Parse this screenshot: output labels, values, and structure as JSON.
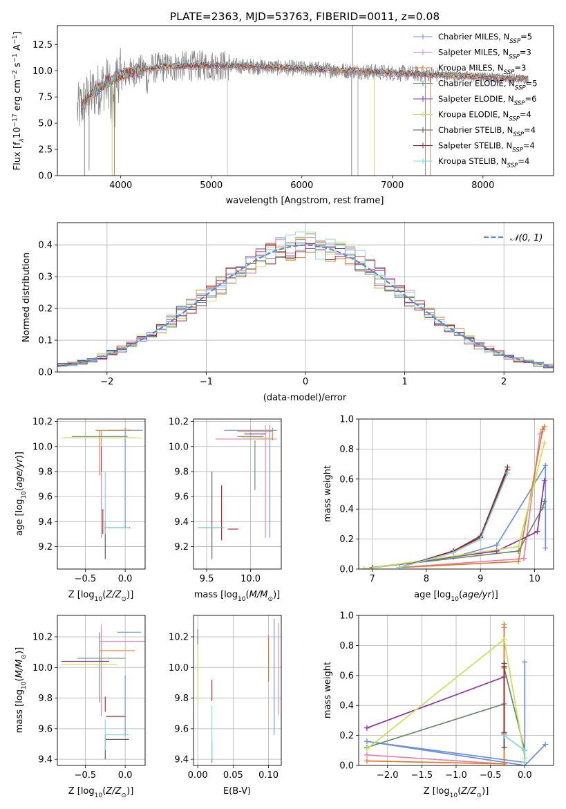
{
  "figure": {
    "title": "PLATE=2363, MJD=53763, FIBERID=0011, z=0.08"
  },
  "colors": {
    "Chabrier MILES": "#6a8fdc",
    "Salpeter MILES": "#e87fae",
    "Kroupa MILES": "#e07b22",
    "Chabrier ELODIE": "#5f8a63",
    "Salpeter ELODIE": "#8e2ea8",
    "Kroupa ELODIE": "#c9e050",
    "Chabrier STELIB": "#505050",
    "Salpeter STELIB": "#b01a1a",
    "Kroupa STELIB": "#7fd6e0",
    "data": "#808080",
    "gaussian": "#5b87d6"
  },
  "chart_data": [
    {
      "id": "spectrum",
      "type": "line",
      "title": "PLATE=2363, MJD=53763, FIBERID=0011, z=0.08",
      "xlabel": "wavelength [Angstrom, rest frame]",
      "ylabel": "Flux [f",
      "ylabel_sub": "λ",
      "ylabel_rest": "10",
      "ylabel_exp": "−17",
      "ylabel_units": " erg cm",
      "ylabel_exp2": "−2",
      "ylabel_units2": " s",
      "ylabel_exp3": "−1",
      "ylabel_units3": " A",
      "ylabel_exp4": "−1",
      "ylabel_close": "]",
      "xlim": [
        3300,
        8780
      ],
      "ylim": [
        0,
        14.3
      ],
      "xticks": [
        "4000",
        "5000",
        "6000",
        "7000",
        "8000"
      ],
      "xtick_values": [
        4000,
        5000,
        6000,
        7000,
        8000
      ],
      "yticks": [
        "0.0",
        "2.5",
        "5.0",
        "7.5",
        "10.0",
        "12.5"
      ],
      "ytick_values": [
        0,
        2.5,
        5.0,
        7.5,
        10.0,
        12.5
      ],
      "data_range": [
        3520,
        8500
      ],
      "continuum": [
        [
          3520,
          6.2
        ],
        [
          3650,
          7.5
        ],
        [
          3800,
          8.6
        ],
        [
          4000,
          9.6
        ],
        [
          4300,
          10.2
        ],
        [
          4600,
          10.4
        ],
        [
          5000,
          10.5
        ],
        [
          5500,
          10.4
        ],
        [
          6000,
          10.2
        ],
        [
          6500,
          10.0
        ],
        [
          7000,
          9.8
        ],
        [
          7500,
          9.6
        ],
        [
          8000,
          9.4
        ],
        [
          8500,
          9.2
        ]
      ],
      "legend": [
        {
          "name": "Chabrier MILES",
          "nssp": "5"
        },
        {
          "name": "Salpeter MILES",
          "nssp": "3"
        },
        {
          "name": "Kroupa MILES",
          "nssp": "3"
        },
        {
          "name": "Chabrier ELODIE",
          "nssp": "5"
        },
        {
          "name": "Salpeter ELODIE",
          "nssp": "6"
        },
        {
          "name": "Kroupa ELODIE",
          "nssp": "4"
        },
        {
          "name": "Chabrier STELIB",
          "nssp": "4"
        },
        {
          "name": "Salpeter STELIB",
          "nssp": "4"
        },
        {
          "name": "Kroupa STELIB",
          "nssp": "4"
        }
      ],
      "legend_prefix": "N",
      "legend_sub": "SSP",
      "legend_placement": "upper-right"
    },
    {
      "id": "residuals",
      "type": "line",
      "xlabel": "(data-model)/error",
      "ylabel": "Normed distribution",
      "xlim": [
        -2.5,
        2.5
      ],
      "ylim": [
        0,
        0.47
      ],
      "xticks": [
        "−2",
        "−1",
        "0",
        "1",
        "2"
      ],
      "xtick_values": [
        -2,
        -1,
        0,
        1,
        2
      ],
      "yticks": [
        "0.0",
        "0.1",
        "0.2",
        "0.3",
        "0.4"
      ],
      "ytick_values": [
        0,
        0.1,
        0.2,
        0.3,
        0.4
      ],
      "grid": true,
      "bin_width": 0.1,
      "legend": "𝒩(0, 1)",
      "legend_placement": "upper-right"
    },
    {
      "id": "age-vs-z",
      "type": "scatter",
      "xlabel": "Z [log",
      "ylabel": "age  [log",
      "xlim": [
        -0.85,
        0.25
      ],
      "ylim": [
        9.02,
        10.22
      ],
      "xticks": [
        "−0.5",
        "0.0"
      ],
      "xtick_values": [
        -0.5,
        0.0
      ],
      "yticks": [
        "9.2",
        "9.4",
        "9.6",
        "9.8",
        "10.0",
        "10.2"
      ],
      "ytick_values": [
        9.2,
        9.4,
        9.6,
        9.8,
        10.0,
        10.2
      ],
      "grid": true,
      "points": [
        {
          "series": "Chabrier MILES",
          "x": 0.0,
          "xerr": 0.22,
          "y": 10.13,
          "yerr": 0.0
        },
        {
          "series": "Chabrier MILES",
          "x": 0.0,
          "xerr": 0.0,
          "y": 9.75,
          "yerr": 0.4
        },
        {
          "series": "Salpeter MILES",
          "x": -0.3,
          "xerr": 0.0,
          "y": 9.7,
          "yerr": 0.43
        },
        {
          "series": "Salpeter MILES",
          "x": -0.32,
          "xerr": 0.45,
          "y": 10.07,
          "yerr": 0.0
        },
        {
          "series": "Kroupa MILES",
          "x": -0.15,
          "xerr": 0.22,
          "y": 10.13,
          "yerr": 0.0
        },
        {
          "series": "Kroupa MILES",
          "x": -0.32,
          "xerr": 0.0,
          "y": 9.95,
          "yerr": 0.18
        },
        {
          "series": "Chabrier ELODIE",
          "x": -0.32,
          "xerr": 0.35,
          "y": 10.08,
          "yerr": 0.0
        },
        {
          "series": "Salpeter ELODIE",
          "x": -0.3,
          "xerr": 0.0,
          "y": 9.9,
          "yerr": 0.1
        },
        {
          "series": "Kroupa ELODIE",
          "x": -0.3,
          "xerr": 0.5,
          "y": 10.07,
          "yerr": 0.0
        },
        {
          "series": "Chabrier STELIB",
          "x": -0.25,
          "xerr": 0.0,
          "y": 9.25,
          "yerr": 0.15
        },
        {
          "series": "Chabrier STELIB",
          "x": -0.1,
          "xerr": 0.16,
          "y": 9.35,
          "yerr": 0.0
        },
        {
          "series": "Salpeter STELIB",
          "x": -0.28,
          "xerr": 0.0,
          "y": 9.4,
          "yerr": 0.1
        },
        {
          "series": "Kroupa STELIB",
          "x": -0.25,
          "xerr": 0.0,
          "y": 9.55,
          "yerr": 0.25
        },
        {
          "series": "Kroupa STELIB",
          "x": -0.1,
          "xerr": 0.15,
          "y": 9.35,
          "yerr": 0.0
        }
      ]
    },
    {
      "id": "age-vs-mass",
      "type": "scatter",
      "xlabel": "mass [log",
      "xlim": [
        9.35,
        10.35
      ],
      "ylim": [
        9.02,
        10.22
      ],
      "xticks": [
        "9.5",
        "10.0"
      ],
      "xtick_values": [
        9.5,
        10.0
      ],
      "yticks": [
        "9.2",
        "9.4",
        "9.6",
        "9.8",
        "10.0",
        "10.2"
      ],
      "ytick_values": [
        9.2,
        9.4,
        9.6,
        9.8,
        10.0,
        10.2
      ],
      "grid": true,
      "points": [
        {
          "series": "Chabrier MILES",
          "x": 10.0,
          "xerr": 0.3,
          "y": 10.13,
          "yerr": 0.0
        },
        {
          "series": "Chabrier MILES",
          "x": 10.22,
          "xerr": 0.0,
          "y": 9.72,
          "yerr": 0.45
        },
        {
          "series": "Salpeter MILES",
          "x": 9.95,
          "xerr": 0.35,
          "y": 10.06,
          "yerr": 0.0
        },
        {
          "series": "Salpeter MILES",
          "x": 10.17,
          "xerr": 0.0,
          "y": 9.72,
          "yerr": 0.45
        },
        {
          "series": "Kroupa MILES",
          "x": 10.05,
          "xerr": 0.2,
          "y": 10.12,
          "yerr": 0.0
        },
        {
          "series": "Kroupa MILES",
          "x": 10.25,
          "xerr": 0.0,
          "y": 10.1,
          "yerr": 0.05
        },
        {
          "series": "Chabrier ELODIE",
          "x": 10.0,
          "xerr": 0.15,
          "y": 10.08,
          "yerr": 0.0
        },
        {
          "series": "Chabrier ELODIE",
          "x": 10.05,
          "xerr": 0.0,
          "y": 9.85,
          "yerr": 0.2
        },
        {
          "series": "Salpeter ELODIE",
          "x": 10.05,
          "xerr": 0.12,
          "y": 10.1,
          "yerr": 0.0
        },
        {
          "series": "Kroupa ELODIE",
          "x": 10.07,
          "xerr": 0.17,
          "y": 10.07,
          "yerr": 0.0
        },
        {
          "series": "Chabrier STELIB",
          "x": 9.55,
          "xerr": 0.15,
          "y": 9.35,
          "yerr": 0.0
        },
        {
          "series": "Chabrier STELIB",
          "x": 9.56,
          "xerr": 0.0,
          "y": 9.45,
          "yerr": 0.35
        },
        {
          "series": "Salpeter STELIB",
          "x": 9.67,
          "xerr": 0.0,
          "y": 9.47,
          "yerr": 0.22
        },
        {
          "series": "Salpeter STELIB",
          "x": 9.8,
          "xerr": 0.06,
          "y": 9.34,
          "yerr": 0.0
        },
        {
          "series": "Kroupa STELIB",
          "x": 9.55,
          "xerr": 0.15,
          "y": 9.35,
          "yerr": 0.0
        }
      ]
    },
    {
      "id": "massweight-vs-age",
      "type": "line",
      "xlabel": "age  [log",
      "ylabel": "mass weight",
      "xlim": [
        6.75,
        10.35
      ],
      "ylim": [
        0,
        1.0
      ],
      "xticks": [
        "7",
        "8",
        "9",
        "10"
      ],
      "xtick_values": [
        7,
        8,
        9,
        10
      ],
      "yticks": [
        "0.0",
        "0.2",
        "0.4",
        "0.6",
        "0.8",
        "1.0"
      ],
      "ytick_values": [
        0,
        0.2,
        0.4,
        0.6,
        0.8,
        1.0
      ],
      "grid": true,
      "series": [
        {
          "name": "Chabrier MILES",
          "x": [
            6.85,
            8.5,
            9.3,
            10.2,
            10.2
          ],
          "y": [
            0.0,
            0.08,
            0.16,
            0.69,
            0.14
          ]
        },
        {
          "name": "Salpeter MILES",
          "x": [
            7.5,
            9.8,
            10.1,
            10.15
          ],
          "y": [
            0.01,
            0.07,
            0.9,
            0.92
          ]
        },
        {
          "name": "Kroupa MILES",
          "x": [
            7.5,
            9.7,
            10.15,
            10.18
          ],
          "y": [
            0.01,
            0.05,
            0.93,
            0.95
          ]
        },
        {
          "name": "Chabrier ELODIE",
          "x": [
            7.0,
            9.7,
            10.15,
            10.18
          ],
          "y": [
            0.01,
            0.12,
            0.41,
            0.45
          ]
        },
        {
          "name": "Salpeter ELODIE",
          "x": [
            7.0,
            9.3,
            10.05,
            10.18
          ],
          "y": [
            0.01,
            0.12,
            0.25,
            0.59
          ]
        },
        {
          "name": "Kroupa ELODIE",
          "x": [
            6.85,
            9.7,
            10.18
          ],
          "y": [
            0.0,
            0.15,
            0.84
          ]
        },
        {
          "name": "Chabrier STELIB",
          "x": [
            7.5,
            8.5,
            9.0,
            9.5
          ],
          "y": [
            0.01,
            0.12,
            0.22,
            0.68
          ]
        },
        {
          "name": "Salpeter STELIB",
          "x": [
            7.5,
            8.5,
            9.0,
            9.5
          ],
          "y": [
            0.01,
            0.12,
            0.21,
            0.66
          ]
        },
        {
          "name": "Kroupa STELIB",
          "x": [
            7.5,
            8.5,
            9.0,
            9.5
          ],
          "y": [
            0.01,
            0.11,
            0.2,
            0.64
          ]
        }
      ]
    },
    {
      "id": "mass-vs-z",
      "type": "scatter",
      "xlabel": "Z [log",
      "ylabel": "mass [log",
      "xlim": [
        -0.85,
        0.25
      ],
      "ylim": [
        9.36,
        10.34
      ],
      "xticks": [
        "−0.5",
        "0.0"
      ],
      "xtick_values": [
        -0.5,
        0.0
      ],
      "yticks": [
        "9.4",
        "9.6",
        "9.8",
        "10.0",
        "10.2"
      ],
      "ytick_values": [
        9.4,
        9.6,
        9.8,
        10.0,
        10.2
      ],
      "grid": true,
      "points": [
        {
          "series": "Chabrier MILES",
          "x": 0.05,
          "xerr": 0.15,
          "y": 10.23,
          "yerr": 0.0
        },
        {
          "series": "Chabrier MILES",
          "x": 0.0,
          "xerr": 0.0,
          "y": 9.75,
          "yerr": 0.2
        },
        {
          "series": "Salpeter MILES",
          "x": -0.02,
          "xerr": 0.3,
          "y": 10.17,
          "yerr": 0.0
        },
        {
          "series": "Salpeter MILES",
          "x": -0.3,
          "xerr": 0.0,
          "y": 9.98,
          "yerr": 0.3
        },
        {
          "series": "Kroupa MILES",
          "x": -0.1,
          "xerr": 0.22,
          "y": 10.11,
          "yerr": 0.0
        },
        {
          "series": "Chabrier ELODIE",
          "x": -0.3,
          "xerr": 0.3,
          "y": 10.06,
          "yerr": 0.0
        },
        {
          "series": "Chabrier ELODIE",
          "x": -0.32,
          "xerr": 0.0,
          "y": 10.0,
          "yerr": 0.23
        },
        {
          "series": "Salpeter ELODIE",
          "x": -0.5,
          "xerr": 0.3,
          "y": 10.04,
          "yerr": 0.0
        },
        {
          "series": "Kroupa ELODIE",
          "x": -0.45,
          "xerr": 0.35,
          "y": 10.02,
          "yerr": 0.0
        },
        {
          "series": "Chabrier STELIB",
          "x": -0.1,
          "xerr": 0.15,
          "y": 9.53,
          "yerr": 0.0
        },
        {
          "series": "Chabrier STELIB",
          "x": -0.25,
          "xerr": 0.0,
          "y": 9.48,
          "yerr": 0.08
        },
        {
          "series": "Salpeter STELIB",
          "x": -0.25,
          "xerr": 0.0,
          "y": 9.76,
          "yerr": 0.05
        },
        {
          "series": "Salpeter STELIB",
          "x": -0.12,
          "xerr": 0.12,
          "y": 9.68,
          "yerr": 0.0
        },
        {
          "series": "Kroupa STELIB",
          "x": -0.1,
          "xerr": 0.15,
          "y": 9.56,
          "yerr": 0.0
        },
        {
          "series": "Kroupa STELIB",
          "x": -0.25,
          "xerr": 0.0,
          "y": 9.56,
          "yerr": 0.1
        }
      ]
    },
    {
      "id": "mass-vs-ebv",
      "type": "scatter",
      "xlabel": "E(B-V)",
      "xlim": [
        -0.006,
        0.118
      ],
      "ylim": [
        9.36,
        10.34
      ],
      "xticks": [
        "0.00",
        "0.05",
        "0.10"
      ],
      "xtick_values": [
        0.0,
        0.05,
        0.1
      ],
      "yticks": [
        "9.4",
        "9.6",
        "9.8",
        "10.0",
        "10.2"
      ],
      "ytick_values": [
        9.4,
        9.6,
        9.8,
        10.0,
        10.2
      ],
      "grid": true,
      "points": [
        {
          "series": "Chabrier MILES",
          "x": 0.108,
          "xerr": 0.0,
          "y": 9.94,
          "yerr": 0.38
        },
        {
          "series": "Salpeter MILES",
          "x": 0.114,
          "xerr": 0.0,
          "y": 9.99,
          "yerr": 0.3
        },
        {
          "series": "Kroupa MILES",
          "x": 0.1,
          "xerr": 0.0,
          "y": 10.06,
          "yerr": 0.15
        },
        {
          "series": "Kroupa ELODIE",
          "x": 0.0,
          "xerr": 0.0,
          "y": 9.98,
          "yerr": 0.23
        },
        {
          "series": "Chabrier ELODIE",
          "x": 0.0,
          "xerr": 0.0,
          "y": 10.2,
          "yerr": 0.05
        },
        {
          "series": "Chabrier STELIB",
          "x": 0.02,
          "xerr": 0.0,
          "y": 9.45,
          "yerr": 0.07
        },
        {
          "series": "Salpeter STELIB",
          "x": 0.02,
          "xerr": 0.0,
          "y": 9.85,
          "yerr": 0.07
        },
        {
          "series": "Kroupa STELIB",
          "x": 0.02,
          "xerr": 0.0,
          "y": 9.57,
          "yerr": 0.18
        }
      ]
    },
    {
      "id": "massweight-vs-z",
      "type": "line",
      "xlabel": "Z [log",
      "ylabel": "mass weight",
      "xlim": [
        -2.42,
        0.42
      ],
      "ylim": [
        0,
        1.0
      ],
      "xticks": [
        "−2.0",
        "−1.5",
        "−1.0",
        "−0.5",
        "0.0"
      ],
      "xtick_values": [
        -2.0,
        -1.5,
        -1.0,
        -0.5,
        0.0
      ],
      "yticks": [
        "0.0",
        "0.2",
        "0.4",
        "0.6",
        "0.8",
        "1.0"
      ],
      "ytick_values": [
        0,
        0.2,
        0.4,
        0.6,
        0.8,
        1.0
      ],
      "grid": true,
      "series": [
        {
          "name": "Chabrier MILES",
          "x": [
            0.3,
            0.0,
            -2.3,
            0.0,
            0.0
          ],
          "y": [
            0.14,
            0.0,
            0.16,
            0.02,
            0.69
          ]
        },
        {
          "name": "Salpeter MILES",
          "x": [
            -2.3,
            -0.3,
            -0.3
          ],
          "y": [
            0.07,
            0.01,
            0.92
          ]
        },
        {
          "name": "Kroupa MILES",
          "x": [
            -2.3,
            -0.3,
            -0.3
          ],
          "y": [
            0.03,
            0.01,
            0.94
          ]
        },
        {
          "name": "Chabrier ELODIE",
          "x": [
            -2.3,
            -0.3,
            -0.3,
            0.0
          ],
          "y": [
            0.12,
            0.41,
            0.65,
            0.1
          ]
        },
        {
          "name": "Salpeter ELODIE",
          "x": [
            -2.3,
            -0.3
          ],
          "y": [
            0.25,
            0.59
          ]
        },
        {
          "name": "Kroupa ELODIE",
          "x": [
            -2.3,
            -0.3,
            0.0
          ],
          "y": [
            0.11,
            0.84,
            0.05
          ]
        },
        {
          "name": "Chabrier STELIB",
          "x": [
            -0.3,
            -0.3,
            -0.3
          ],
          "y": [
            0.22,
            0.68,
            0.12
          ]
        },
        {
          "name": "Salpeter STELIB",
          "x": [
            -0.3,
            -0.3
          ],
          "y": [
            0.21,
            0.66
          ]
        },
        {
          "name": "Kroupa STELIB",
          "x": [
            -0.3,
            0.0,
            0.0
          ],
          "y": [
            0.2,
            0.1,
            0.02
          ]
        }
      ]
    }
  ]
}
